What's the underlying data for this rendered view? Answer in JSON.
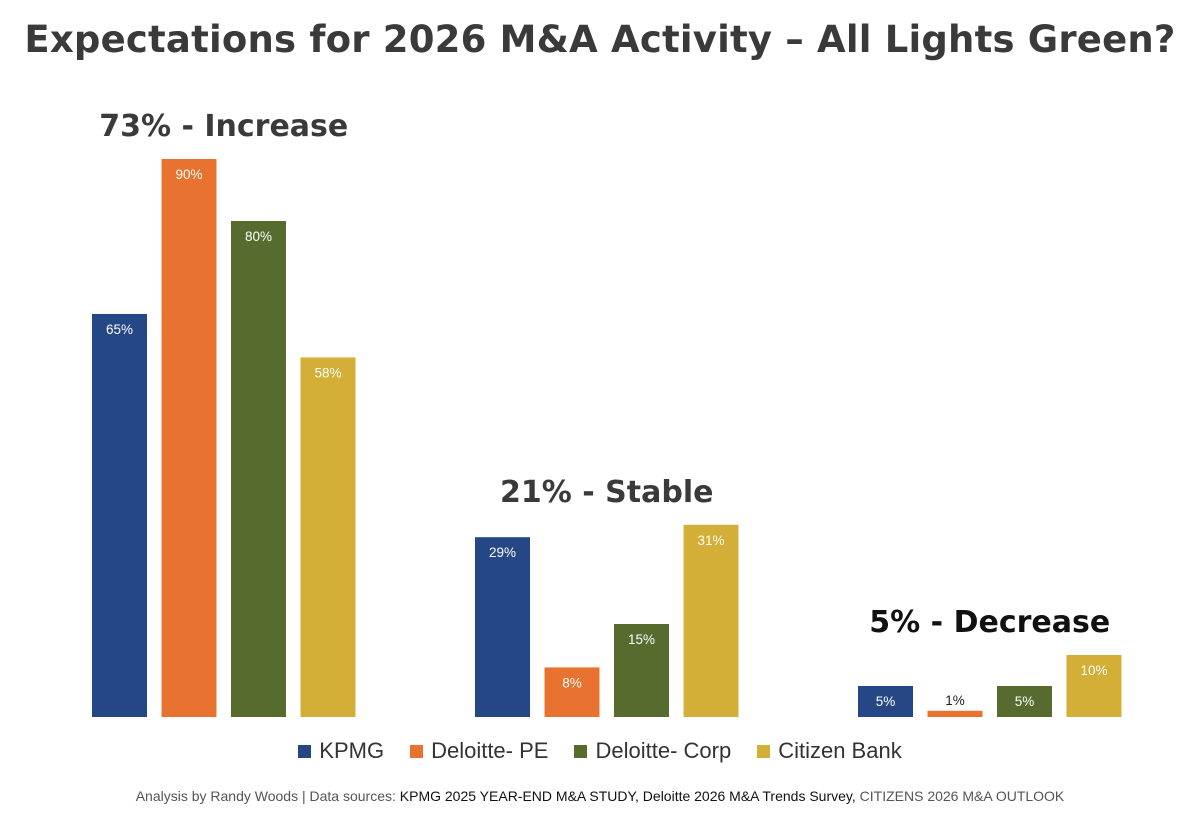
{
  "title": "Expectations for 2026 M&A Activity – All Lights Green?",
  "colors": {
    "KPMG": "#264786",
    "Deloitte- PE": "#E87330",
    "Deloitte- Corp": "#576B2F",
    "Citizen Bank": "#D4AF37",
    "group_label": "#3a3a3a",
    "group_label_dark": "#111111",
    "bar_label_light": "#ffffff",
    "bar_label_dark": "#222222"
  },
  "chart_data": {
    "type": "bar",
    "title": "Expectations for 2026 M&A Activity – All Lights Green?",
    "categories": [
      "Increase",
      "Stable",
      "Decrease"
    ],
    "group_labels": [
      "73% - Increase",
      "21% - Stable",
      "5% - Decrease"
    ],
    "series": [
      {
        "name": "KPMG",
        "values": [
          65,
          29,
          5
        ],
        "labels": [
          "65%",
          "29%",
          "5%"
        ]
      },
      {
        "name": "Deloitte- PE",
        "values": [
          90,
          8,
          1
        ],
        "labels": [
          "90%",
          "8%",
          "1%"
        ]
      },
      {
        "name": "Deloitte- Corp",
        "values": [
          80,
          15,
          5
        ],
        "labels": [
          "80%",
          "15%",
          "5%"
        ]
      },
      {
        "name": "Citizen Bank",
        "values": [
          58,
          31,
          10
        ],
        "labels": [
          "58%",
          "31%",
          "10%"
        ]
      }
    ],
    "xlabel": "",
    "ylabel": "",
    "ylim": [
      0,
      100
    ],
    "grid": false,
    "legend": "bottom"
  },
  "legend": {
    "items": [
      "KPMG",
      "Deloitte- PE",
      "Deloitte- Corp",
      "Citizen Bank"
    ]
  },
  "footnote": {
    "prefix": "Analysis by Randy Woods | Data sources:  ",
    "source1": "KPMG 2025 YEAR-END M&A STUDY, Deloitte 2026 M&A Trends Survey, ",
    "source2": "CITIZENS 2026 M&A OUTLOOK"
  }
}
